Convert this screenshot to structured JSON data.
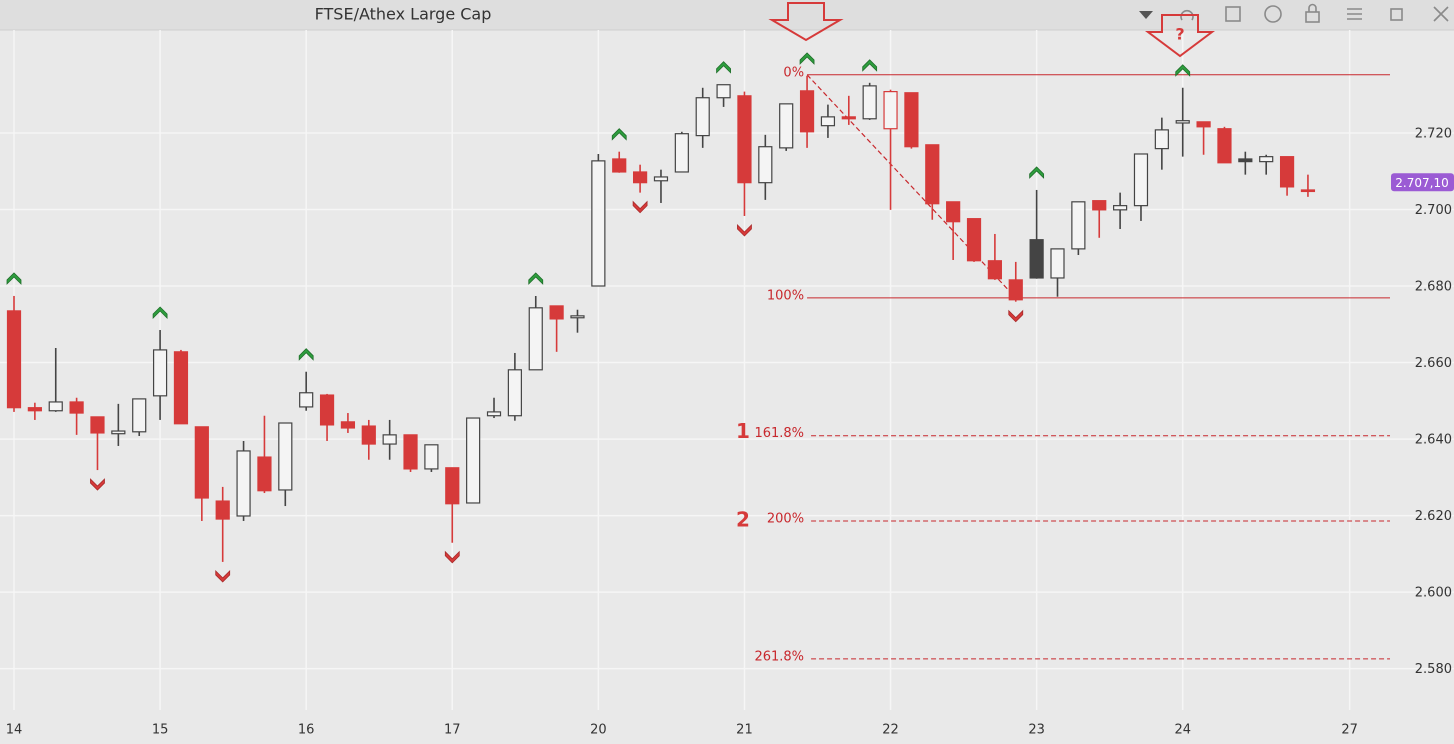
{
  "chart_data": {
    "type": "candlestick",
    "title": "FTSE/Athex Large Cap",
    "categories": [
      "14",
      null,
      null,
      null,
      null,
      null,
      null,
      "15",
      null,
      null,
      null,
      null,
      null,
      null,
      "16",
      null,
      null,
      null,
      null,
      null,
      null,
      "17",
      null,
      null,
      null,
      null,
      null,
      null,
      "20",
      null,
      null,
      null,
      null,
      null,
      null,
      "21",
      null,
      null,
      null,
      null,
      null,
      null,
      "22",
      null,
      null,
      null,
      null,
      null,
      null,
      "23",
      null,
      null,
      null,
      null,
      null,
      null,
      "24",
      null,
      null,
      null,
      null,
      null,
      null,
      null,
      "27"
    ],
    "open": [
      2673.5,
      2648.2,
      2647.4,
      2649.7,
      2645.8,
      2641.4,
      2641.9,
      2651.3,
      2662.8,
      2643.2,
      2623.8,
      2619.9,
      2635.3,
      2626.7,
      2648.4,
      2651.5,
      2644.5,
      2643.4,
      2638.7,
      2641.1,
      2632.2,
      2632.5,
      2623.3,
      2646.1,
      2646.1,
      2658.1,
      2674.8,
      2671.7,
      2680.0,
      2713.2,
      2709.8,
      2707.5,
      2709.8,
      2719.3,
      2729.2,
      2729.7,
      2707.0,
      2716.1,
      2731.0,
      2721.9,
      2724.2,
      2723.7,
      2721.1,
      2730.5,
      2716.9,
      2702.0,
      2697.6,
      2686.6,
      2681.6,
      2692.1,
      2682.1,
      2689.7,
      2702.3,
      2699.9,
      2701.0,
      2715.9,
      2722.6,
      2722.9,
      2721.1,
      2713.2,
      2712.5,
      2713.8,
      2705.1,
      null,
      null
    ],
    "high": [
      2677.4,
      2649.5,
      2663.8,
      2650.8,
      2645.8,
      2649.2,
      2650.5,
      2668.5,
      2663.3,
      2643.2,
      2627.5,
      2639.5,
      2646.1,
      2644.2,
      2657.6,
      2651.8,
      2646.8,
      2645.0,
      2645.0,
      2641.1,
      2638.5,
      2632.5,
      2645.5,
      2650.8,
      2662.5,
      2677.4,
      2674.8,
      2673.8,
      2714.5,
      2715.1,
      2711.7,
      2710.4,
      2720.3,
      2731.8,
      2732.6,
      2730.8,
      2719.5,
      2727.6,
      2734.9,
      2727.4,
      2729.7,
      2733.1,
      2731.3,
      2730.5,
      2716.9,
      2702.0,
      2697.6,
      2693.6,
      2686.3,
      2705.1,
      2689.7,
      2702.0,
      2702.3,
      2704.4,
      2714.5,
      2724.0,
      2731.8,
      2722.9,
      2721.6,
      2715.1,
      2714.3,
      2713.8,
      2709.1,
      null,
      null
    ],
    "low": [
      2647.1,
      2645.0,
      2647.1,
      2641.1,
      2631.9,
      2638.2,
      2640.8,
      2645.0,
      2644.0,
      2618.6,
      2607.9,
      2618.6,
      2625.9,
      2622.5,
      2647.4,
      2639.5,
      2641.6,
      2634.6,
      2634.6,
      2631.4,
      2631.4,
      2612.9,
      2623.3,
      2645.5,
      2644.8,
      2658.1,
      2662.8,
      2667.8,
      2680.0,
      2709.6,
      2704.4,
      2701.7,
      2709.8,
      2716.1,
      2726.8,
      2698.3,
      2702.5,
      2715.3,
      2716.1,
      2718.7,
      2722.1,
      2723.4,
      2699.9,
      2715.9,
      2697.3,
      2686.8,
      2686.3,
      2681.6,
      2675.9,
      2681.9,
      2677.2,
      2688.1,
      2692.6,
      2694.9,
      2697.0,
      2710.4,
      2713.8,
      2714.3,
      2712.2,
      2709.1,
      2709.1,
      2703.6,
      2703.3,
      null,
      null
    ],
    "close": [
      2648.2,
      2647.4,
      2649.7,
      2646.8,
      2641.6,
      2642.1,
      2650.5,
      2663.3,
      2644.0,
      2624.6,
      2619.1,
      2636.9,
      2626.5,
      2644.2,
      2652.1,
      2643.7,
      2642.9,
      2638.7,
      2641.1,
      2632.2,
      2638.5,
      2623.1,
      2645.5,
      2647.1,
      2658.1,
      2674.3,
      2671.4,
      2672.2,
      2712.7,
      2709.8,
      2707.0,
      2708.5,
      2719.8,
      2729.2,
      2732.6,
      2707.0,
      2716.4,
      2727.6,
      2720.3,
      2724.2,
      2723.7,
      2732.3,
      2730.8,
      2716.4,
      2701.5,
      2696.8,
      2686.6,
      2681.9,
      2676.4,
      2682.1,
      2689.7,
      2702.0,
      2699.9,
      2701.0,
      2714.5,
      2720.8,
      2723.2,
      2721.6,
      2712.2,
      2712.5,
      2713.8,
      2705.9,
      2704.9,
      null,
      null
    ],
    "colors": {
      "up": "#444444",
      "down": "#d63a3a",
      "signal_up": "#2e9e3e",
      "signal_down": "#d63a3a",
      "fib": "#c8282d"
    },
    "ylim": [
      2569.2,
      2746.9
    ],
    "yticks": [
      {
        "value": 2580,
        "label": "2.580"
      },
      {
        "value": 2600,
        "label": "2.600"
      },
      {
        "value": 2620,
        "label": "2.620"
      },
      {
        "value": 2640,
        "label": "2.640"
      },
      {
        "value": 2660,
        "label": "2.660"
      },
      {
        "value": 2680,
        "label": "2.680"
      },
      {
        "value": 2700,
        "label": "2.700"
      },
      {
        "value": 2720,
        "label": "2.720"
      }
    ],
    "grid": true,
    "fib": {
      "high": 2735.2,
      "low": 2676.9,
      "levels": [
        {
          "value": 0,
          "label": "0%"
        },
        {
          "value": 100,
          "label": "100%"
        },
        {
          "value": 161.8,
          "label": "161.8%"
        },
        {
          "value": 200,
          "label": "200%"
        },
        {
          "value": 261.8,
          "label": "261.8%"
        }
      ]
    },
    "last_price": {
      "value": 2707.1,
      "label": "2.707,10"
    },
    "annotations": [
      "1",
      "2",
      "?"
    ]
  }
}
